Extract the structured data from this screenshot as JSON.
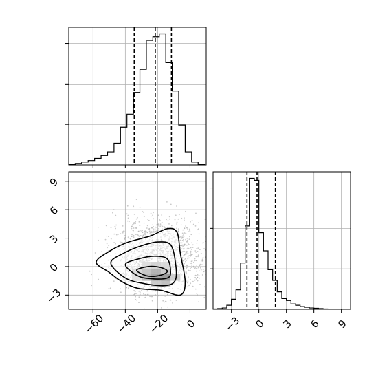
{
  "chart_data": {
    "type": "corner",
    "colors": {
      "line": "#000000",
      "grid": "#b0b0b0",
      "scatter": "#9a9a9a"
    },
    "grid": true,
    "quantile_lines": "dashed",
    "panels": [
      {
        "kind": "histogram",
        "parameter": "x",
        "xlim": [
          -75,
          10
        ],
        "bins": [
          [
            -75,
            -71,
            1
          ],
          [
            -71,
            -67,
            2
          ],
          [
            -67,
            -63,
            4
          ],
          [
            -63,
            -59,
            6
          ],
          [
            -59,
            -55,
            9
          ],
          [
            -55,
            -51,
            13
          ],
          [
            -51,
            -47,
            18
          ],
          [
            -47,
            -43,
            30
          ],
          [
            -43,
            -39,
            52
          ],
          [
            -39,
            -35,
            70
          ],
          [
            -35,
            -31,
            100
          ],
          [
            -31,
            -27,
            132
          ],
          [
            -27,
            -23,
            172
          ],
          [
            -23,
            -19,
            177
          ],
          [
            -19,
            -15,
            181
          ],
          [
            -15,
            -11,
            142
          ],
          [
            -11,
            -7,
            102
          ],
          [
            -7,
            -3,
            55
          ],
          [
            -3,
            1,
            18
          ],
          [
            1,
            5,
            4
          ],
          [
            5,
            9,
            1
          ]
        ],
        "quantiles": [
          -34.5,
          -21.5,
          -11.5
        ]
      },
      {
        "kind": "histogram",
        "parameter": "y",
        "xlim": [
          -5,
          10
        ],
        "xticks": [
          -3,
          0,
          3,
          6,
          9
        ],
        "bins": [
          [
            -5,
            -4.5,
            0.5
          ],
          [
            -4.5,
            -4,
            1
          ],
          [
            -4,
            -3.5,
            2
          ],
          [
            -3.5,
            -3,
            6
          ],
          [
            -3,
            -2.5,
            15
          ],
          [
            -2.5,
            -2,
            29
          ],
          [
            -2,
            -1.5,
            69
          ],
          [
            -1.5,
            -1,
            124
          ],
          [
            -1,
            -0.5,
            195
          ],
          [
            -0.5,
            0,
            192
          ],
          [
            0,
            0.5,
            114
          ],
          [
            0.5,
            1,
            87
          ],
          [
            1,
            1.5,
            59
          ],
          [
            1.5,
            2,
            43
          ],
          [
            2,
            2.5,
            26
          ],
          [
            2.5,
            3,
            16
          ],
          [
            3,
            3.5,
            13
          ],
          [
            3.5,
            4,
            8
          ],
          [
            4,
            4.5,
            6
          ],
          [
            4.5,
            5,
            4
          ],
          [
            5,
            5.5,
            3
          ],
          [
            5.5,
            6,
            2
          ],
          [
            6,
            6.5,
            1.5
          ],
          [
            6.5,
            7,
            1
          ],
          [
            7,
            7.5,
            0.5
          ]
        ],
        "quantiles": [
          -1.3,
          -0.2,
          1.8
        ]
      },
      {
        "kind": "2d-density",
        "x_parameter": "x",
        "y_parameter": "y",
        "xlim": [
          -75,
          10
        ],
        "ylim": [
          -4.5,
          10
        ],
        "xticks": [
          -60,
          -40,
          -20,
          0
        ],
        "yticks": [
          -3,
          0,
          3,
          6,
          9
        ],
        "scatter_center": [
          -20,
          0.8
        ],
        "contours": [
          [
            [
              -58,
              0.5
            ],
            [
              -48,
              1.8
            ],
            [
              -38,
              2.6
            ],
            [
              -25,
              3.2
            ],
            [
              -14,
              4.0
            ],
            [
              -8,
              3.6
            ],
            [
              -6,
              1.4
            ],
            [
              -3,
              -1.6
            ],
            [
              -6,
              -3.0
            ],
            [
              -18,
              -2.5
            ],
            [
              -32,
              -2.3
            ],
            [
              -42,
              -1.6
            ],
            [
              -50,
              -0.6
            ]
          ],
          [
            [
              -49,
              0.4
            ],
            [
              -40,
              1.5
            ],
            [
              -30,
              2.2
            ],
            [
              -20,
              2.6
            ],
            [
              -12,
              2.3
            ],
            [
              -9,
              0.4
            ],
            [
              -9,
              -1.4
            ],
            [
              -15,
              -2.0
            ],
            [
              -28,
              -1.8
            ],
            [
              -40,
              -1.2
            ]
          ],
          [
            [
              -40,
              0.2
            ],
            [
              -32,
              0.8
            ],
            [
              -22,
              1.1
            ],
            [
              -14,
              0.8
            ],
            [
              -12,
              -0.6
            ],
            [
              -14,
              -1.2
            ],
            [
              -22,
              -1.3
            ],
            [
              -32,
              -1.0
            ]
          ],
          [
            [
              -33,
              -0.4
            ],
            [
              -26,
              0.0
            ],
            [
              -18,
              -0.1
            ],
            [
              -14,
              -0.5
            ],
            [
              -18,
              -0.9
            ],
            [
              -26,
              -1.0
            ]
          ]
        ],
        "density_cells": [
          [
            -36,
            -30,
            -0.8,
            -0.2,
            0.35
          ],
          [
            -30,
            -24,
            -0.8,
            -0.2,
            0.55
          ],
          [
            -24,
            -18,
            -0.8,
            -0.2,
            0.7
          ],
          [
            -18,
            -12,
            -0.8,
            -0.2,
            0.5
          ],
          [
            -30,
            -24,
            -1.5,
            -0.8,
            0.65
          ],
          [
            -24,
            -18,
            -1.5,
            -0.8,
            0.85
          ],
          [
            -18,
            -12,
            -1.5,
            -0.8,
            0.95
          ],
          [
            -12,
            -6,
            -1.5,
            -0.8,
            0.45
          ],
          [
            -30,
            -24,
            -0.2,
            0.5,
            0.3
          ],
          [
            -24,
            -18,
            -0.2,
            0.5,
            0.4
          ],
          [
            -18,
            -12,
            -0.2,
            0.5,
            0.35
          ],
          [
            -24,
            -18,
            -2.1,
            -1.5,
            0.5
          ],
          [
            -18,
            -12,
            -2.1,
            -1.5,
            0.6
          ],
          [
            -36,
            -30,
            -1.5,
            -0.8,
            0.3
          ]
        ]
      }
    ],
    "tick_labels": {
      "bottom_left_x": [
        "−60",
        "−40",
        "−20",
        "0"
      ],
      "bottom_left_y": [
        "−3",
        "0",
        "3",
        "6",
        "9"
      ],
      "bottom_right_x": [
        "−3",
        "0",
        "3",
        "6",
        "9"
      ]
    }
  }
}
